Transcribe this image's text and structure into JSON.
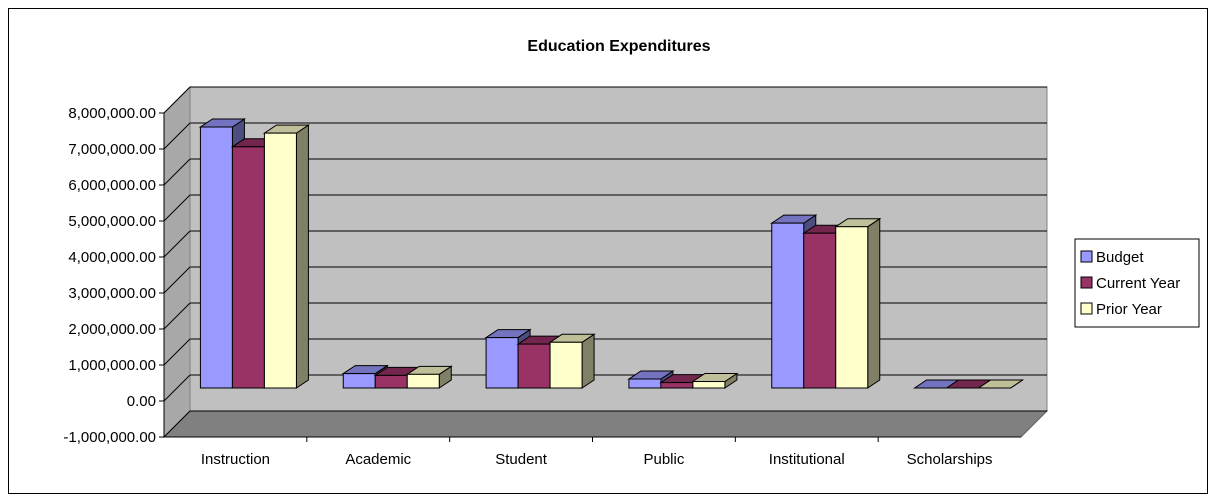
{
  "chart_data": {
    "type": "bar",
    "title": "Education Expenditures",
    "xlabel": "",
    "ylabel": "",
    "categories": [
      "Instruction",
      "Academic",
      "Student",
      "Public",
      "Institutional",
      "Scholarships"
    ],
    "y_ticks": [
      "8,000,000.00",
      "7,000,000.00",
      "6,000,000.00",
      "5,000,000.00",
      "4,000,000.00",
      "3,000,000.00",
      "2,000,000.00",
      "1,000,000.00",
      "0.00",
      "-1,000,000.00"
    ],
    "ylim": [
      -1000000,
      8000000
    ],
    "grid": true,
    "legend_position": "right",
    "series": [
      {
        "name": "Budget",
        "color": "#9999ff",
        "values": [
          7250000,
          400000,
          1400000,
          250000,
          4580000,
          0
        ]
      },
      {
        "name": "Current Year",
        "color": "#993366",
        "values": [
          6700000,
          350000,
          1220000,
          150000,
          4300000,
          0
        ]
      },
      {
        "name": "Prior Year",
        "color": "#ffffcc",
        "values": [
          7080000,
          380000,
          1270000,
          180000,
          4480000,
          0
        ]
      }
    ]
  }
}
